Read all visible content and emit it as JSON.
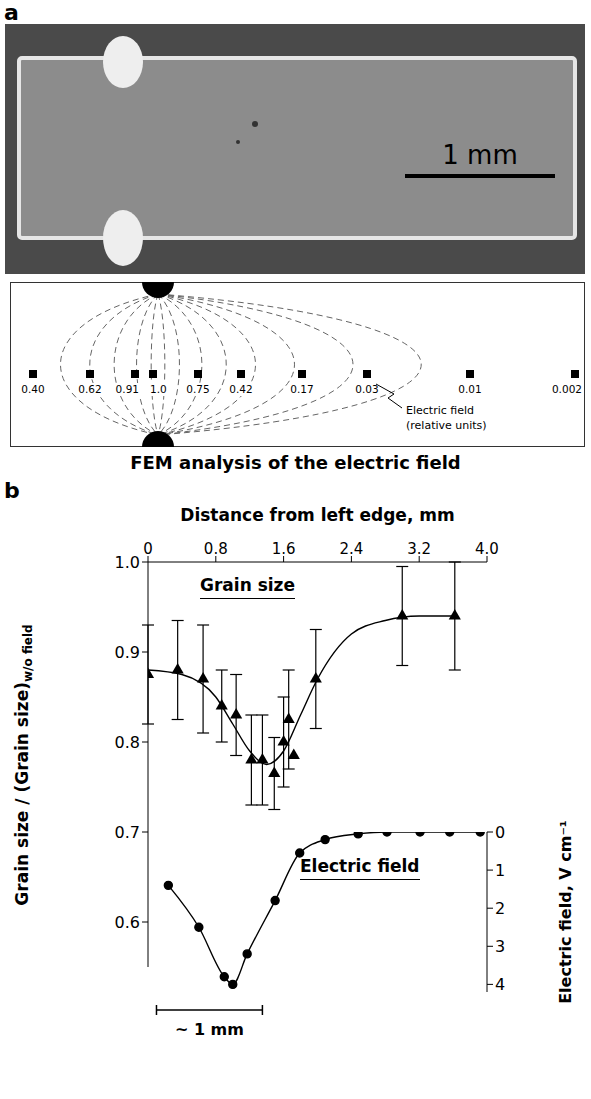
{
  "panel_a": {
    "letter": "a",
    "scale_bar": "1 mm",
    "fem": {
      "field_values": [
        "0.40",
        "0.62",
        "0.91",
        "1.0",
        "0.75",
        "0.42",
        "0.17",
        "0.03",
        "0.01",
        "0.002"
      ],
      "annotation": [
        "Electric field",
        "(relative units)"
      ],
      "caption": "FEM analysis of the electric field"
    }
  },
  "panel_b": {
    "letter": "b"
  },
  "chart_data": [
    {
      "type": "scatter",
      "xlabel": "Distance from left edge, mm",
      "ylabel": [
        "Grain size / (Grain size)",
        "w/o field"
      ],
      "xlim": [
        0,
        4
      ],
      "xticks": [
        0,
        0.8,
        1.6,
        2.4,
        3.2,
        {
          "value": 4,
          "label": "4.0"
        }
      ],
      "ylim": [
        0.55,
        1
      ],
      "yticks": [
        0.6,
        0.7,
        0.8,
        0.9,
        {
          "value": 1,
          "label": "1.0"
        }
      ],
      "grid": false,
      "series": [
        {
          "type": "scatter",
          "marker": "triangle",
          "color": "#000000",
          "x": [
            0,
            0.35,
            0.65,
            0.87,
            1.04,
            1.22,
            1.35,
            1.49,
            1.6,
            1.66,
            1.72,
            1.98,
            3.0,
            3.62
          ],
          "values": [
            0.875,
            0.88,
            0.87,
            0.84,
            0.83,
            0.78,
            0.78,
            0.765,
            0.8,
            0.825,
            0.785,
            0.87,
            0.94,
            0.94
          ],
          "errors": [
            0.055,
            0.055,
            0.06,
            0.04,
            0.045,
            0.05,
            0.05,
            0.04,
            0.05,
            0.055,
            0,
            0.055,
            0.055,
            0.06
          ]
        },
        {
          "type": "line",
          "marker": "none",
          "color": "#000000",
          "x": [
            0,
            0.4,
            0.8,
            1.0,
            1.2,
            1.4,
            1.6,
            1.8,
            2.0,
            2.4,
            2.8,
            3.2,
            3.6
          ],
          "values": [
            0.88,
            0.875,
            0.85,
            0.82,
            0.79,
            0.775,
            0.79,
            0.83,
            0.87,
            0.92,
            0.935,
            0.94,
            0.94
          ]
        }
      ],
      "annotations": [
        {
          "text": "Grain size"
        }
      ]
    },
    {
      "type": "line",
      "ylabel": "Electric field, V cm⁻¹",
      "xlim": [
        0,
        4
      ],
      "ylim": [
        4.2,
        0
      ],
      "yticks": [
        0,
        1,
        2,
        3,
        4
      ],
      "tick_labels": "y",
      "grid": false,
      "series": [
        {
          "type": "line",
          "marker": "circle",
          "color": "#000000",
          "x": [
            0.24,
            0.6,
            0.9,
            1.0,
            1.17,
            1.5,
            1.79,
            2.09,
            2.48,
            2.82,
            3.21,
            3.56,
            3.92
          ],
          "values": [
            1.4,
            2.5,
            3.8,
            4.0,
            3.2,
            1.8,
            0.55,
            0.2,
            0.05,
            0,
            0,
            0,
            0
          ]
        }
      ],
      "annotations": [
        {
          "text": "Electric field"
        },
        {
          "text": "~ 1 mm",
          "x": [
            0.1,
            1.35
          ]
        }
      ]
    }
  ]
}
